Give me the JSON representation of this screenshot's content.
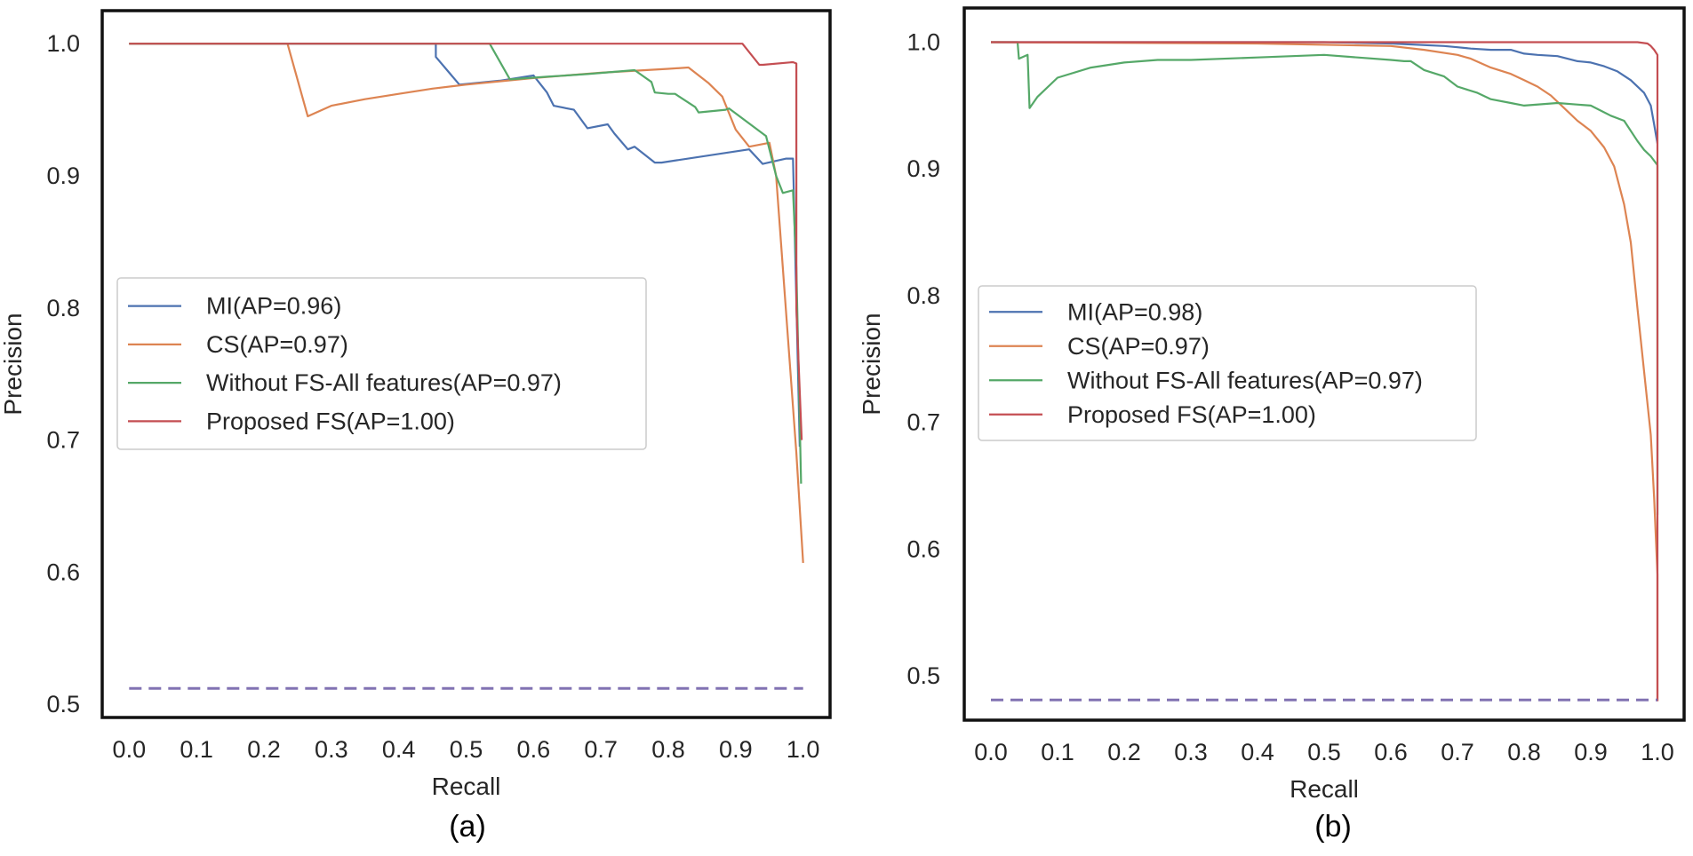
{
  "chart_data": [
    {
      "type": "line",
      "panel_label": "(a)",
      "xlabel": "Recall",
      "ylabel": "Precision",
      "xlim": [
        -0.04,
        1.04
      ],
      "ylim": [
        0.49,
        1.025
      ],
      "xticks": [
        "0.0",
        "0.1",
        "0.2",
        "0.3",
        "0.4",
        "0.5",
        "0.6",
        "0.7",
        "0.8",
        "0.9",
        "1.0"
      ],
      "yticks": [
        "0.5",
        "0.6",
        "0.7",
        "0.8",
        "0.9",
        "1.0"
      ],
      "legend_position": "center-left",
      "series": [
        {
          "name": "MI(AP=0.96)",
          "color": "#4c72b0",
          "x": [
            0.0,
            0.455,
            0.455,
            0.49,
            0.55,
            0.6,
            0.62,
            0.63,
            0.66,
            0.68,
            0.71,
            0.72,
            0.74,
            0.75,
            0.78,
            0.79,
            0.92,
            0.94,
            0.975,
            0.985,
            0.995
          ],
          "y": [
            1.0,
            1.0,
            0.99,
            0.969,
            0.972,
            0.976,
            0.963,
            0.953,
            0.95,
            0.936,
            0.939,
            0.932,
            0.92,
            0.922,
            0.91,
            0.91,
            0.92,
            0.909,
            0.913,
            0.913,
            0.695
          ]
        },
        {
          "name": "CS(AP=0.97)",
          "color": "#dd8452",
          "x": [
            0.0,
            0.235,
            0.265,
            0.3,
            0.35,
            0.4,
            0.45,
            0.5,
            0.6,
            0.7,
            0.8,
            0.83,
            0.86,
            0.88,
            0.9,
            0.92,
            0.95,
            0.96,
            0.99,
            1.0
          ],
          "y": [
            1.0,
            1.0,
            0.945,
            0.953,
            0.958,
            0.962,
            0.966,
            0.969,
            0.974,
            0.978,
            0.981,
            0.982,
            0.97,
            0.96,
            0.935,
            0.922,
            0.925,
            0.9,
            0.69,
            0.607
          ]
        },
        {
          "name": "Without FS-All features(AP=0.97)",
          "color": "#55a868",
          "x": [
            0.0,
            0.535,
            0.565,
            0.62,
            0.68,
            0.75,
            0.775,
            0.78,
            0.8,
            0.81,
            0.84,
            0.845,
            0.885,
            0.89,
            0.945,
            0.96,
            0.97,
            0.985,
            0.99,
            0.997
          ],
          "y": [
            1.0,
            1.0,
            0.973,
            0.975,
            0.977,
            0.98,
            0.971,
            0.963,
            0.962,
            0.962,
            0.952,
            0.948,
            0.95,
            0.951,
            0.93,
            0.9,
            0.887,
            0.889,
            0.83,
            0.667
          ]
        },
        {
          "name": "Proposed FS(AP=1.00)",
          "color": "#c44e52",
          "x": [
            0.0,
            0.91,
            0.935,
            0.94,
            0.985,
            0.99,
            0.99,
            0.998
          ],
          "y": [
            1.0,
            1.0,
            0.984,
            0.984,
            0.986,
            0.985,
            0.8,
            0.7
          ]
        },
        {
          "name": "baseline",
          "color": "#8172b2",
          "dashed": true,
          "x": [
            0.0,
            1.0
          ],
          "y": [
            0.512,
            0.512
          ]
        }
      ]
    },
    {
      "type": "line",
      "panel_label": "(b)",
      "xlabel": "Recall",
      "ylabel": "Precision",
      "xlim": [
        -0.04,
        1.04
      ],
      "ylim": [
        0.465,
        1.027
      ],
      "xticks": [
        "0.0",
        "0.1",
        "0.2",
        "0.3",
        "0.4",
        "0.5",
        "0.6",
        "0.7",
        "0.8",
        "0.9",
        "1.0"
      ],
      "yticks": [
        "0.5",
        "0.6",
        "0.7",
        "0.8",
        "0.9",
        "1.0"
      ],
      "legend_position": "center-left",
      "series": [
        {
          "name": "MI(AP=0.98)",
          "color": "#4c72b0",
          "x": [
            0.0,
            0.5,
            0.6,
            0.68,
            0.7,
            0.72,
            0.75,
            0.78,
            0.8,
            0.82,
            0.85,
            0.88,
            0.9,
            0.92,
            0.94,
            0.96,
            0.98,
            0.99,
            0.995,
            1.0
          ],
          "y": [
            1.0,
            1.0,
            0.999,
            0.997,
            0.996,
            0.995,
            0.994,
            0.994,
            0.991,
            0.99,
            0.989,
            0.985,
            0.984,
            0.981,
            0.977,
            0.97,
            0.96,
            0.95,
            0.935,
            0.92
          ]
        },
        {
          "name": "CS(AP=0.97)",
          "color": "#dd8452",
          "x": [
            0.0,
            0.4,
            0.6,
            0.65,
            0.7,
            0.72,
            0.75,
            0.78,
            0.8,
            0.82,
            0.84,
            0.86,
            0.88,
            0.9,
            0.92,
            0.935,
            0.95,
            0.96,
            0.97,
            0.98,
            0.99,
            0.995,
            1.0,
            1.0
          ],
          "y": [
            1.0,
            0.999,
            0.997,
            0.994,
            0.99,
            0.987,
            0.98,
            0.975,
            0.97,
            0.965,
            0.958,
            0.948,
            0.938,
            0.93,
            0.917,
            0.902,
            0.872,
            0.842,
            0.79,
            0.74,
            0.69,
            0.64,
            0.58,
            0.48
          ]
        },
        {
          "name": "Without FS-All features(AP=0.97)",
          "color": "#55a868",
          "x": [
            0.0,
            0.04,
            0.042,
            0.055,
            0.058,
            0.07,
            0.1,
            0.15,
            0.2,
            0.25,
            0.3,
            0.4,
            0.5,
            0.55,
            0.6,
            0.62,
            0.63,
            0.65,
            0.68,
            0.7,
            0.73,
            0.75,
            0.78,
            0.8,
            0.85,
            0.9,
            0.93,
            0.95,
            0.97,
            0.98,
            0.99,
            1.0,
            1.0,
            1.0
          ],
          "y": [
            1.0,
            1.0,
            0.987,
            0.99,
            0.948,
            0.957,
            0.972,
            0.98,
            0.984,
            0.986,
            0.986,
            0.988,
            0.99,
            0.988,
            0.986,
            0.985,
            0.985,
            0.978,
            0.973,
            0.965,
            0.96,
            0.955,
            0.952,
            0.95,
            0.952,
            0.95,
            0.942,
            0.938,
            0.922,
            0.915,
            0.91,
            0.903,
            0.68,
            0.627
          ]
        },
        {
          "name": "Proposed FS(AP=1.00)",
          "color": "#c44e52",
          "x": [
            0.0,
            0.97,
            0.985,
            0.99,
            0.995,
            1.0,
            1.0,
            1.0
          ],
          "y": [
            1.0,
            1.0,
            0.999,
            0.997,
            0.994,
            0.99,
            0.7,
            0.48
          ]
        },
        {
          "name": "baseline",
          "color": "#8172b2",
          "dashed": true,
          "x": [
            0.0,
            1.0
          ],
          "y": [
            0.481,
            0.481
          ]
        }
      ]
    }
  ]
}
